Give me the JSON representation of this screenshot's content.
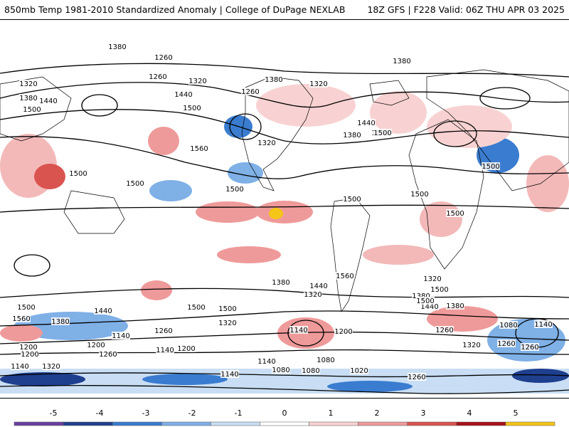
{
  "header": {
    "left": "850mb Temp 1981-2010 Standardized Anomaly | College of DuPage NEXLAB",
    "right": "18Z GFS | F228 Valid: 06Z THU APR 03 2025"
  },
  "map": {
    "projection": "global cylindrical",
    "contour_labels": [
      "1380",
      "1260",
      "1260",
      "1320",
      "1320",
      "1380",
      "1440",
      "1500",
      "1260",
      "1320",
      "1380",
      "1440",
      "1500",
      "1560",
      "1320",
      "1380",
      "1440",
      "1500",
      "1380",
      "1500",
      "1500",
      "1500",
      "1500",
      "1500",
      "1500",
      "1500",
      "1500",
      "1560",
      "1440",
      "1320",
      "1380",
      "1500",
      "1500",
      "1500",
      "1560",
      "1440",
      "1380",
      "1320",
      "1260",
      "1140",
      "1200",
      "1260",
      "1140",
      "1200",
      "1140",
      "1080",
      "1080",
      "1020",
      "1080",
      "1140",
      "1140",
      "1200",
      "1260",
      "1320",
      "1380",
      "1500",
      "1440",
      "1500",
      "1380",
      "1320",
      "1260",
      "1140",
      "1260",
      "1080",
      "1200",
      "1200",
      "1140",
      "1320",
      "1260"
    ],
    "colors": {
      "neg5": "#6b3fa0",
      "neg4": "#1f3f8f",
      "neg3": "#3a7ccf",
      "neg2": "#7fb0e6",
      "neg1": "#c9def4",
      "pos1": "#f8d2d2",
      "pos2": "#ef9a9a",
      "pos3": "#d9534f",
      "pos4": "#a8101a",
      "pos5": "#f5c518"
    }
  },
  "colorbar": {
    "ticks": [
      "-5",
      "-4",
      "-3",
      "-2",
      "-1",
      "0",
      "1",
      "2",
      "3",
      "4",
      "5"
    ],
    "segments": [
      "#6b3fa0",
      "#1f3f8f",
      "#3a7ccf",
      "#7fb0e6",
      "#c9def4",
      "#ffffff",
      "#f8d2d2",
      "#ef9a9a",
      "#d9534f",
      "#a8101a",
      "#f5c518"
    ]
  }
}
